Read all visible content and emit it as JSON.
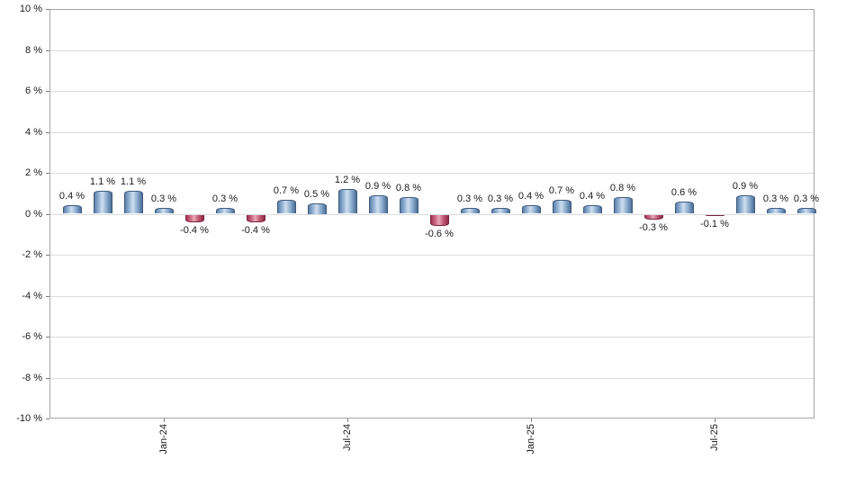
{
  "chart_data": {
    "type": "bar",
    "title": "",
    "xlabel": "",
    "ylabel": "",
    "ylim": [
      -10,
      10
    ],
    "grid": true,
    "legend": "none",
    "yticks": [
      {
        "value": 10,
        "label": "10 %"
      },
      {
        "value": 8,
        "label": "8 %"
      },
      {
        "value": 6,
        "label": "6 %"
      },
      {
        "value": 4,
        "label": "4 %"
      },
      {
        "value": 2,
        "label": "2 %"
      },
      {
        "value": 0,
        "label": "0 %"
      },
      {
        "value": -2,
        "label": "-2 %"
      },
      {
        "value": -4,
        "label": "-4 %"
      },
      {
        "value": -6,
        "label": "-6 %"
      },
      {
        "value": -8,
        "label": "-8 %"
      },
      {
        "value": -10,
        "label": "-10 %"
      }
    ],
    "values": [
      0.4,
      1.1,
      1.1,
      0.3,
      -0.4,
      0.3,
      -0.4,
      0.7,
      0.5,
      1.2,
      0.9,
      0.8,
      -0.6,
      0.3,
      0.3,
      0.4,
      0.7,
      0.4,
      0.8,
      -0.3,
      0.6,
      -0.1,
      0.9,
      0.3,
      0.3
    ],
    "bar_labels": [
      "0.4 %",
      "1.1 %",
      "1.1 %",
      "0.3 %",
      "-0.4 %",
      "0.3 %",
      "-0.4 %",
      "0.7 %",
      "0.5 %",
      "1.2 %",
      "0.9 %",
      "0.8 %",
      "-0.6 %",
      "0.3 %",
      "0.3 %",
      "0.4 %",
      "0.7 %",
      "0.4 %",
      "0.8 %",
      "-0.3 %",
      "0.6 %",
      "-0.1 %",
      "0.9 %",
      "0.3 %",
      "0.3 %"
    ],
    "x_ticks": [
      {
        "bar_index": 3,
        "label": "Jan-24"
      },
      {
        "bar_index": 9,
        "label": "Jul-24"
      },
      {
        "bar_index": 15,
        "label": "Jan-25"
      },
      {
        "bar_index": 21,
        "label": "Jul-25"
      }
    ],
    "colors": {
      "positive_bar": "#89abd2",
      "negative_bar": "#c04868",
      "gridline": "#dcdcdc",
      "border": "#a6a6a6",
      "text": "#1a1a1a"
    }
  }
}
